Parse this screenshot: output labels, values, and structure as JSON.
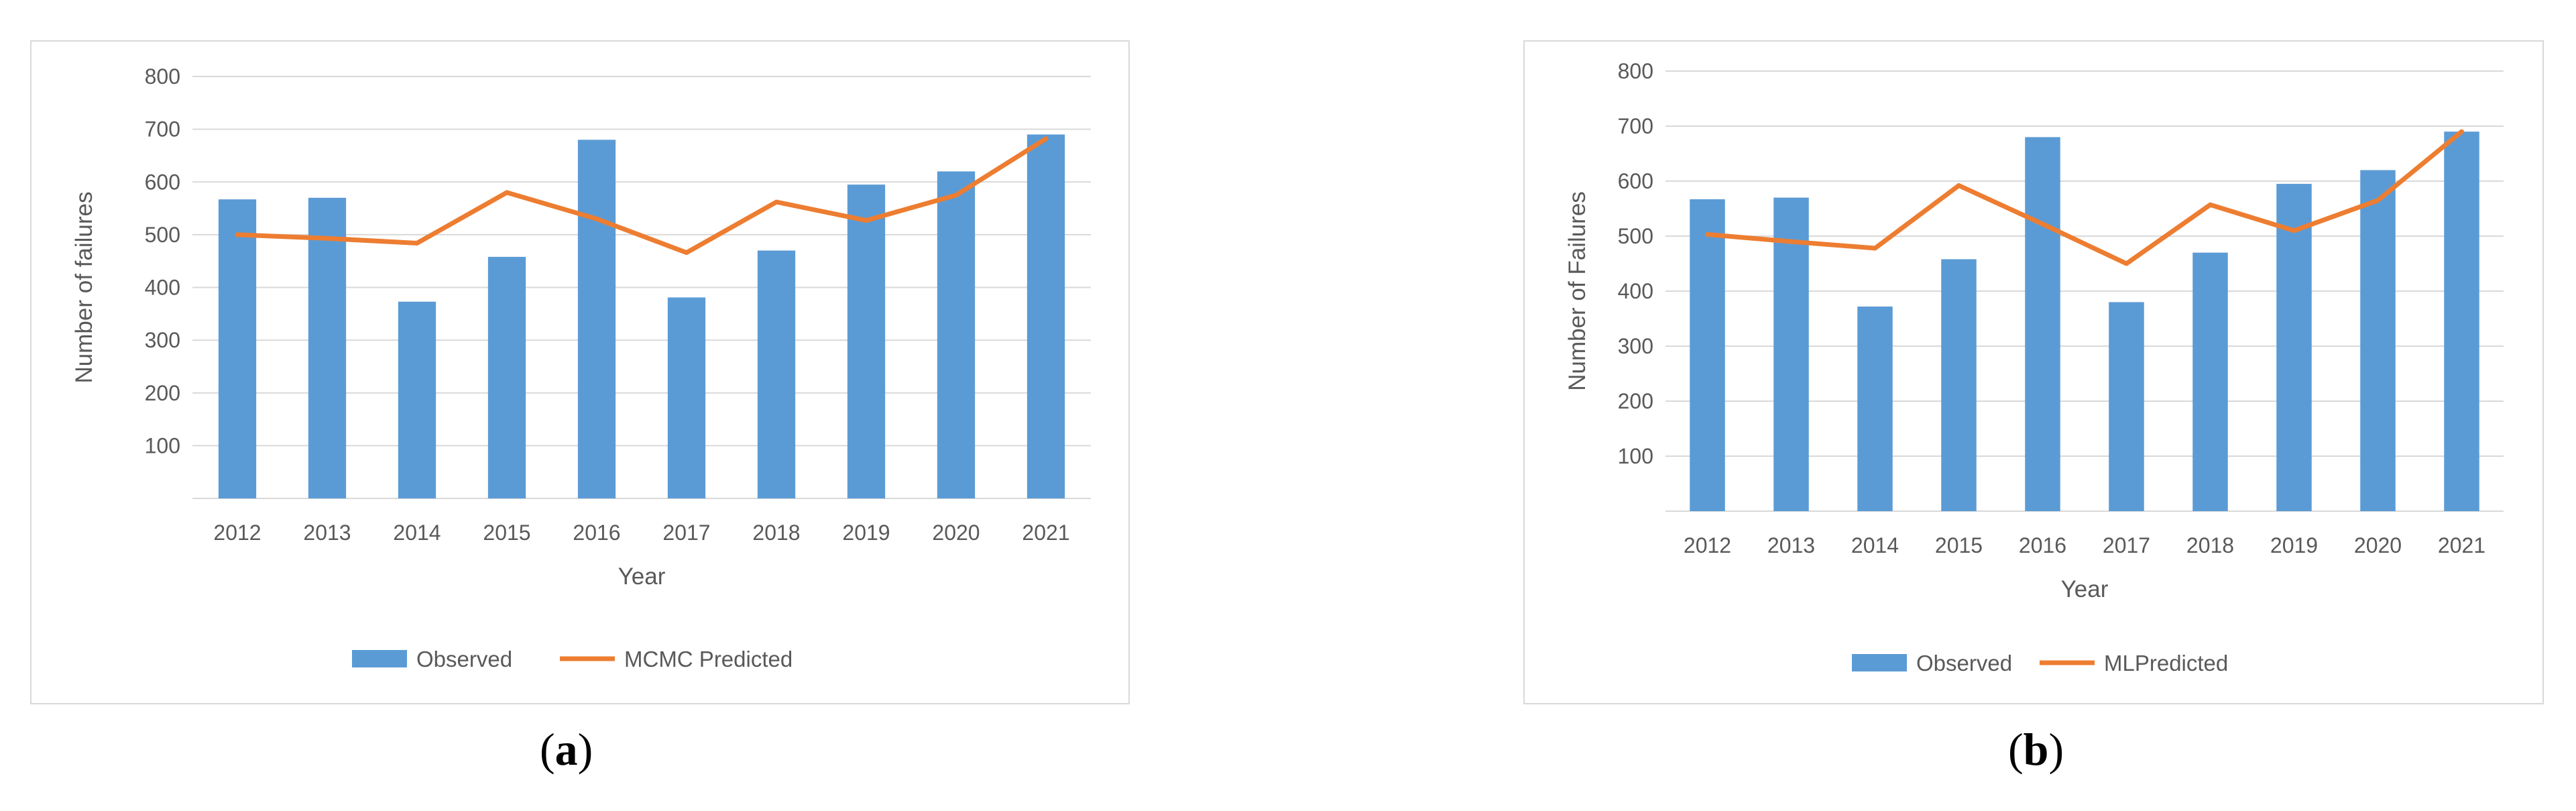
{
  "chart_data": [
    {
      "type": "bar",
      "panel_label": "a",
      "title": "",
      "xlabel": "Year",
      "ylabel": "Number of failures",
      "ylim": [
        0,
        800
      ],
      "yticks": [
        100,
        200,
        300,
        400,
        500,
        600,
        700,
        800
      ],
      "grid": true,
      "legend_position": "bottom",
      "categories": [
        "2012",
        "2013",
        "2014",
        "2015",
        "2016",
        "2017",
        "2018",
        "2019",
        "2020",
        "2021"
      ],
      "series": [
        {
          "name": "Observed",
          "type": "bar",
          "color": "#5b9bd5",
          "values": [
            567,
            570,
            373,
            458,
            680,
            381,
            470,
            595,
            620,
            690
          ]
        },
        {
          "name": "MCMC Predicted",
          "type": "line",
          "color": "#ed7d31",
          "values": [
            500,
            493,
            484,
            580,
            530,
            466,
            562,
            527,
            575,
            682
          ]
        }
      ]
    },
    {
      "type": "bar",
      "panel_label": "b",
      "title": "",
      "xlabel": "Year",
      "ylabel": "Number of Failures",
      "ylim": [
        0,
        800
      ],
      "yticks": [
        100,
        200,
        300,
        400,
        500,
        600,
        700,
        800
      ],
      "grid": true,
      "legend_position": "bottom",
      "categories": [
        "2012",
        "2013",
        "2014",
        "2015",
        "2016",
        "2017",
        "2018",
        "2019",
        "2020",
        "2021"
      ],
      "series": [
        {
          "name": "Observed",
          "type": "bar",
          "color": "#5b9bd5",
          "values": [
            567,
            570,
            372,
            458,
            680,
            380,
            470,
            595,
            620,
            690
          ]
        },
        {
          "name": "MLPredicted",
          "type": "line",
          "color": "#ed7d31",
          "values": [
            503,
            490,
            478,
            592,
            522,
            450,
            557,
            510,
            565,
            690
          ]
        }
      ]
    }
  ]
}
